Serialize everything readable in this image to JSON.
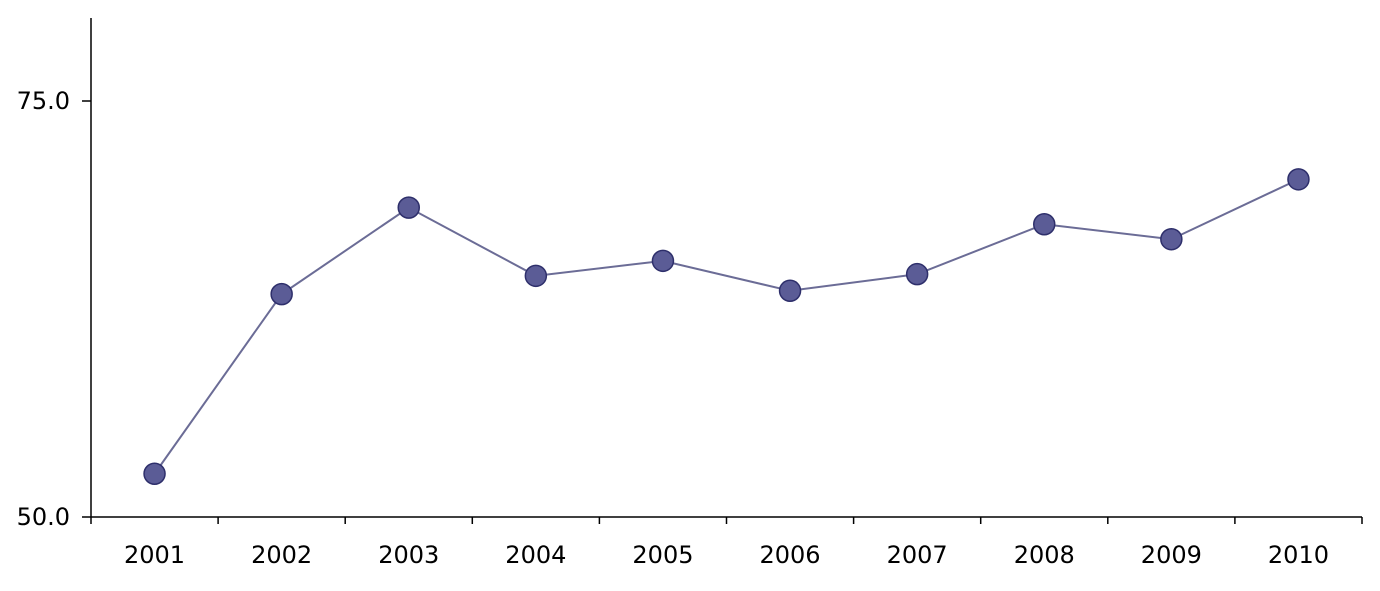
{
  "chart_data": {
    "type": "line",
    "title": "",
    "xlabel": "",
    "ylabel": "",
    "categories": [
      "2001",
      "2002",
      "2003",
      "2004",
      "2005",
      "2006",
      "2007",
      "2008",
      "2009",
      "2010"
    ],
    "series": [
      {
        "values": [
          52.6,
          63.4,
          68.6,
          64.5,
          65.4,
          63.6,
          64.6,
          67.6,
          66.7,
          70.3
        ],
        "color": "#5B5C96",
        "line_color": "#6B6C96",
        "marker": "circle",
        "marker_edge_color": "#2E2F6B"
      }
    ],
    "ylim": [
      50.0,
      80.0
    ],
    "y_ticks": [
      "50.0",
      "75.0"
    ],
    "grid": false,
    "legend": "none"
  }
}
